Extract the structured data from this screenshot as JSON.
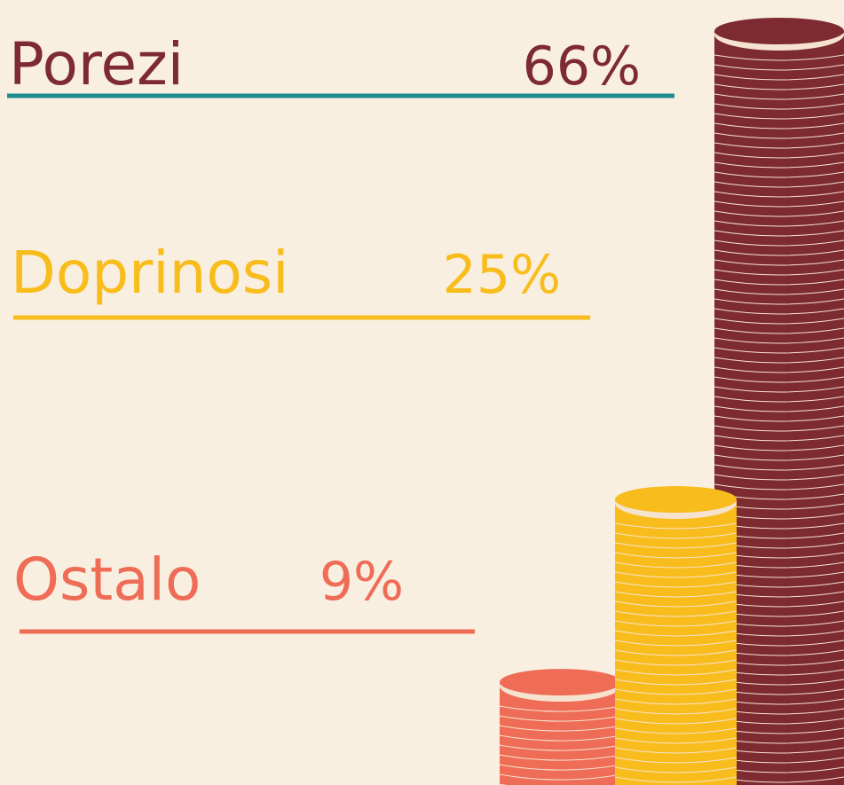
{
  "chart_data": {
    "type": "bar",
    "categories": [
      "Porezi",
      "Doprinosi",
      "Ostalo"
    ],
    "values": [
      66,
      25,
      9
    ],
    "value_labels": [
      "66%",
      "25%",
      "9%"
    ],
    "colors": [
      "#7d2a31",
      "#f8bd1c",
      "#ef6c56"
    ],
    "underline_colors": [
      "#1b8b8e",
      "#f8bd1c",
      "#ef6c56"
    ]
  }
}
